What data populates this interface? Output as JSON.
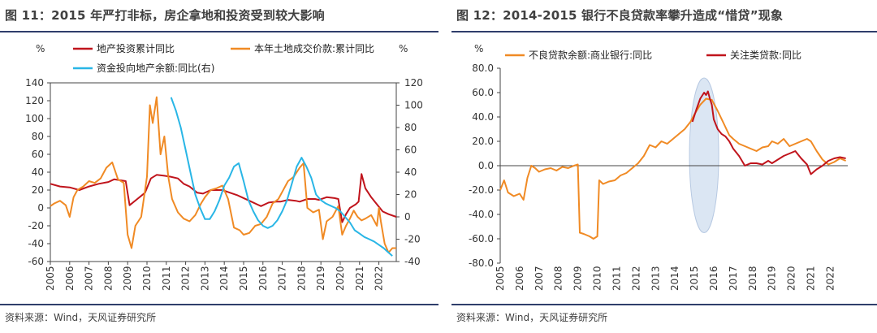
{
  "footnote": "资料来源：Wind，天风证券研究所",
  "chart_data": [
    {
      "type": "line",
      "title": "图 11：2015 年严打非标，房企拿地和投资受到较大影响",
      "ylabel_left": "%",
      "ylabel_right": "%",
      "ylim_left": [
        -60,
        140
      ],
      "yticks_left": [
        -60,
        -40,
        -20,
        0,
        20,
        40,
        60,
        80,
        100,
        120,
        140
      ],
      "ylim_right": [
        -40,
        120
      ],
      "yticks_right": [
        -40,
        -20,
        0,
        20,
        40,
        60,
        80,
        100,
        120
      ],
      "xlim": [
        2005,
        2022.9
      ],
      "xticks": [
        "2005",
        "2006",
        "2007",
        "2008",
        "2009",
        "2010",
        "2011",
        "2012",
        "2013",
        "2014",
        "2015",
        "2016",
        "2017",
        "2018",
        "2019",
        "2020",
        "2021",
        "2022"
      ],
      "legend_position": "top",
      "series": [
        {
          "name": "地产投资累计同比",
          "color": "#c0141c",
          "axis": "left",
          "x": [
            2005.0,
            2005.5,
            2006.0,
            2006.5,
            2007.0,
            2007.5,
            2008.0,
            2008.3,
            2008.6,
            2008.9,
            2009.1,
            2009.5,
            2009.9,
            2010.2,
            2010.5,
            2010.9,
            2011.2,
            2011.6,
            2011.9,
            2012.2,
            2012.6,
            2012.9,
            2013.3,
            2013.7,
            2013.9,
            2014.3,
            2014.7,
            2014.9,
            2015.3,
            2015.7,
            2015.9,
            2016.3,
            2016.7,
            2016.9,
            2017.3,
            2017.7,
            2017.9,
            2018.3,
            2018.7,
            2018.9,
            2019.3,
            2019.7,
            2019.9,
            2020.1,
            2020.3,
            2020.5,
            2020.8,
            2020.95,
            2021.1,
            2021.3,
            2021.6,
            2021.9,
            2022.2,
            2022.5,
            2022.9
          ],
          "y": [
            27,
            24,
            23,
            20,
            24,
            27,
            29,
            32,
            31,
            30,
            3,
            10,
            17,
            33,
            37,
            36,
            35,
            33,
            27,
            24,
            17,
            16,
            20,
            20,
            20,
            17,
            14,
            12,
            8,
            4,
            2,
            6,
            7,
            7,
            9,
            8,
            7,
            10,
            10,
            9,
            12,
            11,
            10,
            -16,
            -7,
            0,
            4,
            7,
            38,
            22,
            12,
            4,
            -4,
            -7,
            -10
          ]
        },
        {
          "name": "本年土地成交价款:累计同比",
          "color": "#f08a24",
          "axis": "left",
          "x": [
            2005.0,
            2005.2,
            2005.5,
            2005.8,
            2006.0,
            2006.2,
            2006.4,
            2006.7,
            2007.0,
            2007.3,
            2007.6,
            2007.9,
            2008.2,
            2008.5,
            2008.8,
            2009.0,
            2009.2,
            2009.4,
            2009.7,
            2010.0,
            2010.15,
            2010.3,
            2010.5,
            2010.7,
            2010.9,
            2011.1,
            2011.3,
            2011.6,
            2011.9,
            2012.2,
            2012.5,
            2012.8,
            2013.0,
            2013.3,
            2013.6,
            2013.9,
            2014.2,
            2014.5,
            2014.8,
            2015.0,
            2015.3,
            2015.6,
            2015.9,
            2016.2,
            2016.5,
            2016.8,
            2017.0,
            2017.3,
            2017.6,
            2017.9,
            2018.1,
            2018.3,
            2018.6,
            2018.9,
            2019.1,
            2019.3,
            2019.6,
            2019.9,
            2020.1,
            2020.3,
            2020.5,
            2020.7,
            2020.9,
            2021.1,
            2021.3,
            2021.6,
            2021.9,
            2022.0,
            2022.1,
            2022.3,
            2022.5,
            2022.7,
            2022.9
          ],
          "y": [
            2,
            5,
            8,
            3,
            -10,
            12,
            20,
            24,
            30,
            28,
            33,
            45,
            51,
            32,
            28,
            -30,
            -45,
            -20,
            -10,
            35,
            115,
            95,
            124,
            60,
            80,
            35,
            10,
            -5,
            -12,
            -15,
            -8,
            5,
            12,
            20,
            22,
            25,
            10,
            -22,
            -25,
            -30,
            -28,
            -20,
            -18,
            -10,
            5,
            10,
            18,
            30,
            35,
            45,
            50,
            0,
            -5,
            -2,
            -35,
            -15,
            -10,
            2,
            -30,
            -20,
            -12,
            -3,
            -10,
            -14,
            -12,
            -8,
            -20,
            0,
            -15,
            -40,
            -50,
            -45,
            -45
          ]
        },
        {
          "name": "资金投向地产余额:同比(右)",
          "color": "#29b6e6",
          "axis": "right",
          "x": [
            2011.25,
            2011.5,
            2011.75,
            2012.0,
            2012.25,
            2012.5,
            2012.75,
            2013.0,
            2013.25,
            2013.5,
            2013.75,
            2014.0,
            2014.25,
            2014.5,
            2014.75,
            2015.0,
            2015.25,
            2015.5,
            2015.75,
            2016.0,
            2016.25,
            2016.5,
            2016.75,
            2017.0,
            2017.25,
            2017.5,
            2017.75,
            2018.0,
            2018.25,
            2018.5,
            2018.75,
            2019.0,
            2019.25,
            2019.5,
            2019.75,
            2020.0,
            2020.25,
            2020.5,
            2020.75,
            2021.0,
            2021.25,
            2021.5,
            2021.75,
            2022.0,
            2022.25,
            2022.5,
            2022.7
          ],
          "y": [
            107,
            95,
            80,
            60,
            40,
            20,
            8,
            -2,
            -2,
            5,
            15,
            28,
            35,
            45,
            48,
            32,
            15,
            5,
            -3,
            -8,
            -10,
            -8,
            -3,
            5,
            15,
            30,
            45,
            53,
            45,
            35,
            20,
            15,
            12,
            10,
            8,
            5,
            0,
            -5,
            -12,
            -15,
            -18,
            -20,
            -22,
            -25,
            -28,
            -32,
            -35
          ]
        }
      ]
    },
    {
      "type": "line",
      "title": "图 12：2014-2015 银行不良贷款率攀升造成“惜贷”现象",
      "ylabel": "%",
      "ylim": [
        -80,
        80
      ],
      "yticks": [
        "-80.0",
        "-60.0",
        "-40.0",
        "-20.0",
        "0.0",
        "20.0",
        "40.0",
        "60.0",
        "80.0"
      ],
      "xlim": [
        2005,
        2022.9
      ],
      "xticks": [
        "2005",
        "2006",
        "2007",
        "2008",
        "2009",
        "2010",
        "2011",
        "2012",
        "2013",
        "2014",
        "2015",
        "2016",
        "2017",
        "2018",
        "2019",
        "2020",
        "2021",
        "2022"
      ],
      "legend_position": "top",
      "highlight": {
        "shape": "ellipse",
        "x_center": 2015.5,
        "y_range": [
          -55,
          72
        ],
        "color": "#dbe6f3"
      },
      "series": [
        {
          "name": "不良贷款余额:商业银行:同比",
          "color": "#f08a24",
          "x": [
            2005.0,
            2005.2,
            2005.4,
            2005.7,
            2006.0,
            2006.2,
            2006.4,
            2006.6,
            2006.8,
            2007.0,
            2007.3,
            2007.6,
            2007.9,
            2008.2,
            2008.5,
            2008.8,
            2009.0,
            2009.1,
            2009.3,
            2009.6,
            2009.8,
            2010.0,
            2010.1,
            2010.3,
            2010.6,
            2010.9,
            2011.2,
            2011.5,
            2011.8,
            2012.1,
            2012.4,
            2012.7,
            2013.0,
            2013.3,
            2013.6,
            2013.9,
            2014.2,
            2014.5,
            2014.8,
            2015.0,
            2015.3,
            2015.6,
            2015.9,
            2016.2,
            2016.5,
            2016.8,
            2017.0,
            2017.3,
            2017.6,
            2017.9,
            2018.2,
            2018.5,
            2018.8,
            2019.0,
            2019.3,
            2019.6,
            2019.9,
            2020.2,
            2020.5,
            2020.8,
            2021.0,
            2021.3,
            2021.6,
            2021.9,
            2022.2,
            2022.5,
            2022.8
          ],
          "y": [
            -20,
            -12,
            -22,
            -25,
            -23,
            -28,
            -10,
            0,
            -2,
            -5,
            -3,
            -2,
            -4,
            -1,
            -2,
            0,
            1,
            -55,
            -56,
            -58,
            -60,
            -58,
            -12,
            -15,
            -13,
            -12,
            -8,
            -6,
            -2,
            2,
            8,
            17,
            15,
            20,
            18,
            22,
            26,
            30,
            36,
            42,
            50,
            55,
            54,
            45,
            35,
            25,
            22,
            18,
            16,
            14,
            12,
            15,
            16,
            20,
            18,
            22,
            16,
            18,
            20,
            22,
            20,
            12,
            5,
            1,
            3,
            6,
            4
          ]
        },
        {
          "name": "关注类贷款:同比",
          "color": "#c0141c",
          "x": [
            2014.9,
            2015.1,
            2015.3,
            2015.5,
            2015.6,
            2015.7,
            2015.8,
            2015.9,
            2016.0,
            2016.2,
            2016.4,
            2016.6,
            2016.8,
            2017.0,
            2017.3,
            2017.6,
            2017.9,
            2018.2,
            2018.5,
            2018.8,
            2019.0,
            2019.3,
            2019.6,
            2019.9,
            2020.2,
            2020.5,
            2020.8,
            2021.0,
            2021.3,
            2021.6,
            2021.9,
            2022.2,
            2022.5,
            2022.8
          ],
          "y": [
            36,
            46,
            55,
            60,
            58,
            61,
            55,
            50,
            38,
            30,
            26,
            24,
            20,
            14,
            8,
            0,
            2,
            2,
            1,
            4,
            2,
            5,
            8,
            10,
            12,
            6,
            1,
            -7,
            -3,
            0,
            4,
            6,
            7,
            6
          ]
        }
      ]
    }
  ]
}
